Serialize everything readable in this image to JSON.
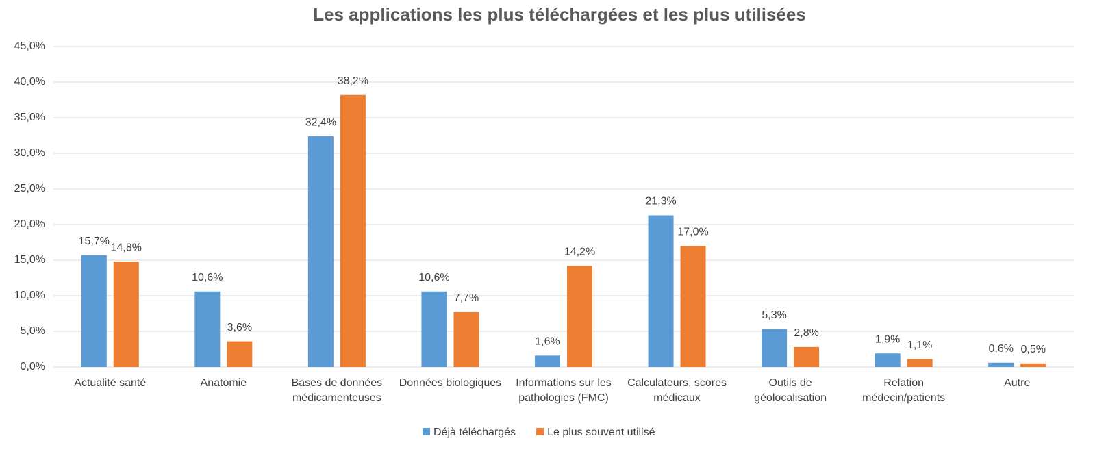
{
  "chart_data": {
    "type": "bar",
    "title": "Les applications les plus téléchargées et les plus utilisées",
    "categories": [
      "Actualité santé",
      "Anatomie",
      "Bases de données médicamenteuses",
      "Données biologiques",
      "Informations sur les pathologies (FMC)",
      "Calculateurs, scores médicaux",
      "Outils de géolocalisation",
      "Relation médecin/patients",
      "Autre"
    ],
    "series": [
      {
        "name": "Déjà téléchargés",
        "color": "#5b9bd5",
        "values": [
          15.7,
          10.6,
          32.4,
          10.6,
          1.6,
          21.3,
          5.3,
          1.9,
          0.6
        ],
        "value_labels": [
          "15,7%",
          "10,6%",
          "32,4%",
          "10,6%",
          "1,6%",
          "21,3%",
          "5,3%",
          "1,9%",
          "0,6%"
        ]
      },
      {
        "name": "Le plus souvent utilisé",
        "color": "#ed7d31",
        "values": [
          14.8,
          3.6,
          38.2,
          7.7,
          14.2,
          17.0,
          2.8,
          1.1,
          0.5
        ],
        "value_labels": [
          "14,8%",
          "3,6%",
          "38,2%",
          "7,7%",
          "14,2%",
          "17,0%",
          "2,8%",
          "1,1%",
          "0,5%"
        ]
      }
    ],
    "ylim": [
      0,
      45
    ],
    "yticks": [
      {
        "value": 0,
        "label": "0,0%"
      },
      {
        "value": 5,
        "label": "5,0%"
      },
      {
        "value": 10,
        "label": "10,0%"
      },
      {
        "value": 15,
        "label": "15,0%"
      },
      {
        "value": 20,
        "label": "20,0%"
      },
      {
        "value": 25,
        "label": "25,0%"
      },
      {
        "value": 30,
        "label": "30,0%"
      },
      {
        "value": 35,
        "label": "35,0%"
      },
      {
        "value": 40,
        "label": "40,0%"
      },
      {
        "value": 45,
        "label": "45,0%"
      }
    ],
    "grid": true,
    "legend": "bottom"
  }
}
